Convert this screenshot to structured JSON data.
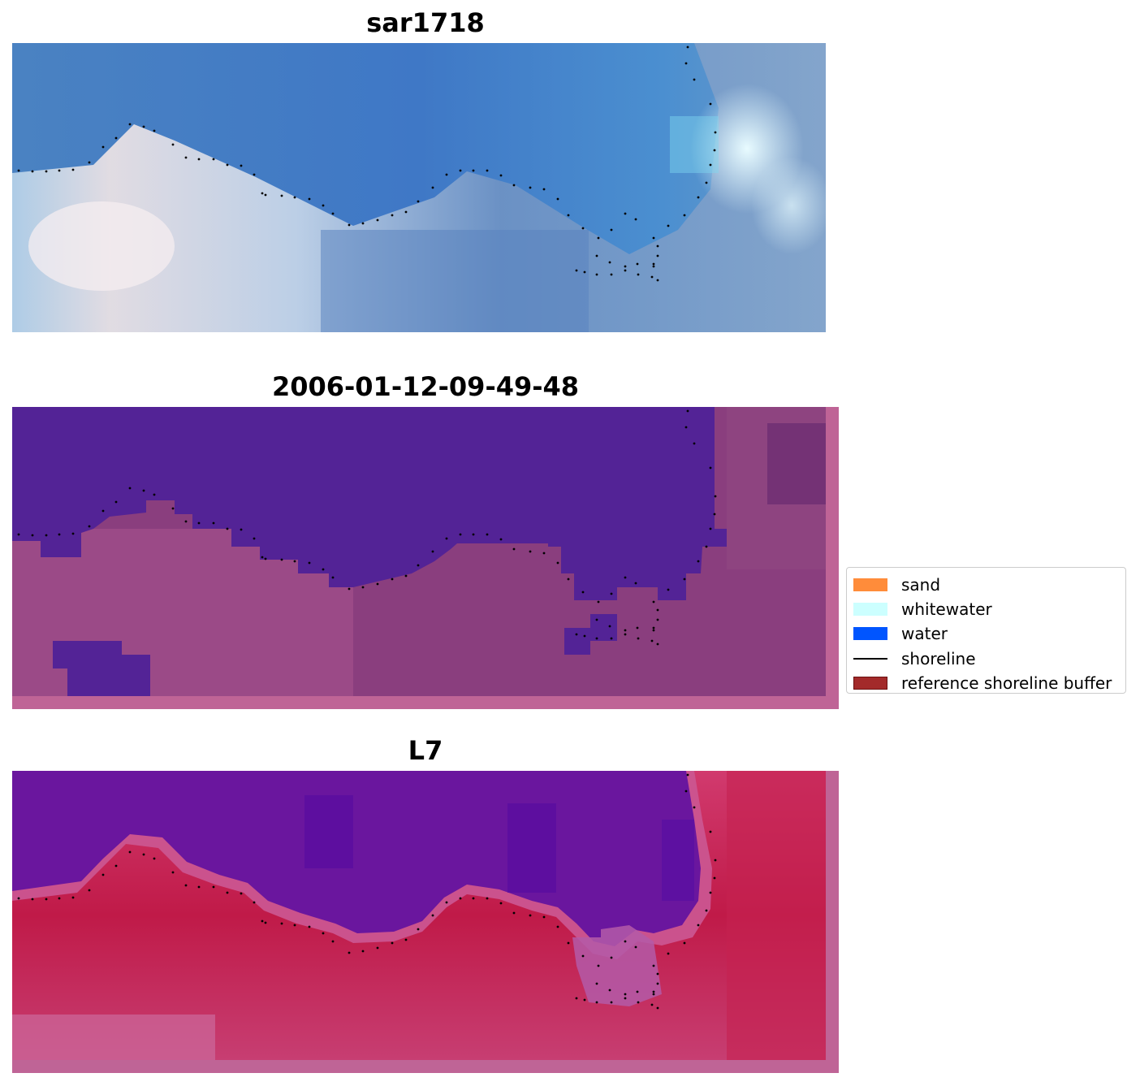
{
  "panels": [
    {
      "title": "sar1718"
    },
    {
      "title": "2006-01-12-09-49-48"
    },
    {
      "title": "L7"
    }
  ],
  "legend": {
    "items": [
      {
        "label": "sand",
        "color": "#ff8c3a",
        "kind": "patch"
      },
      {
        "label": "whitewater",
        "color": "#ccffff",
        "kind": "patch"
      },
      {
        "label": "water",
        "color": "#0055ff",
        "kind": "patch"
      },
      {
        "label": "shoreline",
        "color": "#000000",
        "kind": "line"
      },
      {
        "label": "reference shoreline buffer",
        "color": "#a32a2a",
        "kind": "patch"
      }
    ]
  }
}
